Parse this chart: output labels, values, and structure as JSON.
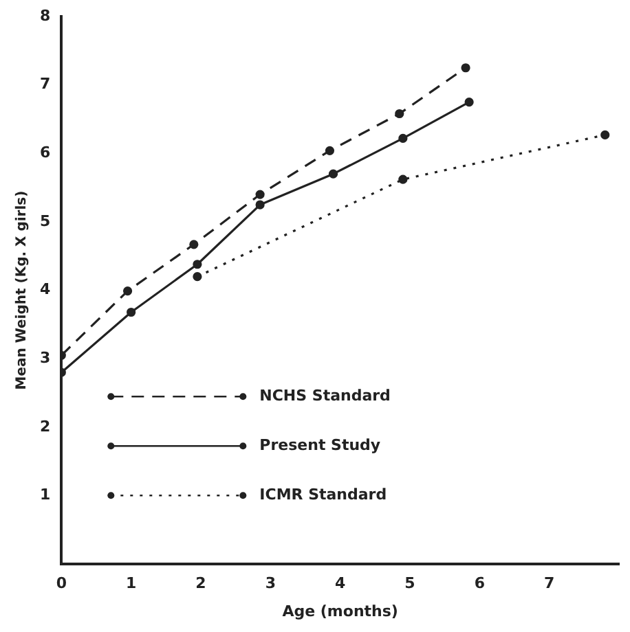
{
  "chart_data": {
    "type": "line",
    "xlabel": "Age (months)",
    "ylabel": "Mean Weight (Kg. X girls)",
    "xlim": [
      0,
      8
    ],
    "xticks": [
      0,
      1,
      2,
      3,
      4,
      5,
      6,
      7
    ],
    "ylim": [
      0,
      8
    ],
    "yticks": [
      1,
      2,
      3,
      4,
      5,
      6,
      7,
      8
    ],
    "grid": false,
    "legend": "bottom left",
    "marker": "circle",
    "series": [
      {
        "name": "NCHS Standard",
        "color": "#222222",
        "line_style": "dashed",
        "x": [
          0,
          0.95,
          1.9,
          2.85,
          3.85,
          4.85,
          5.8
        ],
        "values": [
          3.05,
          3.99,
          4.67,
          5.4,
          6.04,
          6.58,
          7.25
        ]
      },
      {
        "name": "Present Study",
        "color": "#222222",
        "line_style": "solid",
        "x": [
          0,
          1,
          1.95,
          2.85,
          3.9,
          4.9,
          5.85
        ],
        "values": [
          2.8,
          3.68,
          4.38,
          5.25,
          5.7,
          6.22,
          6.75
        ]
      },
      {
        "name": "ICMR Standard",
        "color": "#222222",
        "line_style": "dotted",
        "x": [
          1.95,
          4.9,
          7.8
        ],
        "values": [
          4.2,
          5.62,
          6.27
        ]
      }
    ]
  }
}
